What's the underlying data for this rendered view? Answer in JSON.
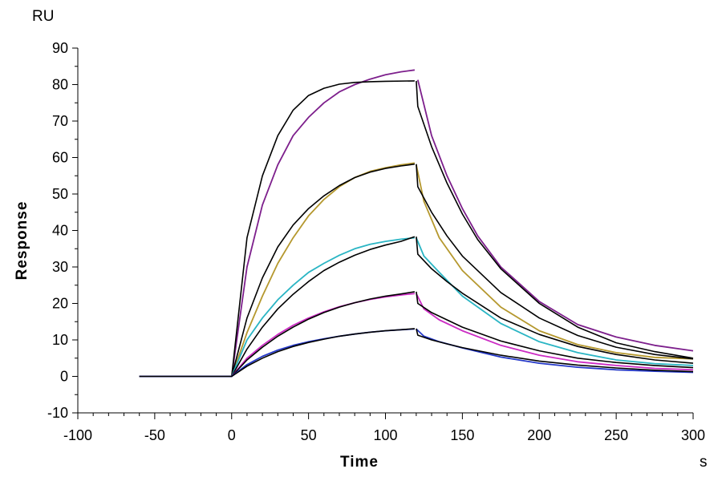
{
  "chart_data": {
    "type": "line",
    "title": "",
    "xlabel": "Time",
    "ylabel": "Response",
    "x_unit": "s",
    "y_unit": "RU",
    "xlim": [
      -100,
      300
    ],
    "ylim": [
      -10,
      90
    ],
    "x_ticks": [
      "-100",
      "-50",
      "0",
      "50",
      "100",
      "150",
      "200",
      "250",
      "300"
    ],
    "y_ticks": [
      "-10",
      "0",
      "10",
      "20",
      "30",
      "40",
      "50",
      "60",
      "70",
      "80",
      "90"
    ],
    "grid": false,
    "legend": "none",
    "series": [
      {
        "color": "#7d1f8c",
        "role": "data",
        "start": -60,
        "association_end": 120,
        "end": 300,
        "points": [
          [
            0,
            0
          ],
          [
            10,
            30
          ],
          [
            20,
            47
          ],
          [
            30,
            58
          ],
          [
            40,
            66
          ],
          [
            50,
            71
          ],
          [
            60,
            75
          ],
          [
            70,
            78
          ],
          [
            80,
            80
          ],
          [
            90,
            81.5
          ],
          [
            100,
            82.7
          ],
          [
            110,
            83.5
          ],
          [
            119,
            84
          ]
        ],
        "dissociation": [
          [
            121,
            81.3
          ],
          [
            130,
            66
          ],
          [
            140,
            55
          ],
          [
            150,
            46
          ],
          [
            160,
            38.5
          ],
          [
            175,
            30
          ],
          [
            200,
            20.5
          ],
          [
            225,
            14.2
          ],
          [
            250,
            10.8
          ],
          [
            275,
            8.5
          ],
          [
            300,
            7
          ]
        ]
      },
      {
        "color": "#000000",
        "role": "fit",
        "start": -60,
        "association_end": 120,
        "end": 300,
        "points": [
          [
            0,
            0
          ],
          [
            10,
            38
          ],
          [
            20,
            55
          ],
          [
            30,
            66
          ],
          [
            40,
            73
          ],
          [
            50,
            77
          ],
          [
            60,
            79
          ],
          [
            70,
            80.1
          ],
          [
            80,
            80.6
          ],
          [
            90,
            80.8
          ],
          [
            100,
            80.9
          ],
          [
            119,
            81
          ]
        ],
        "dissociation": [
          [
            120,
            81
          ],
          [
            121,
            74
          ],
          [
            130,
            63
          ],
          [
            140,
            53
          ],
          [
            150,
            44.5
          ],
          [
            160,
            37.5
          ],
          [
            175,
            29.5
          ],
          [
            200,
            20
          ],
          [
            225,
            13.5
          ],
          [
            250,
            9.2
          ],
          [
            275,
            6.8
          ],
          [
            300,
            5
          ]
        ]
      },
      {
        "color": "#b5982e",
        "role": "data",
        "start": -60,
        "association_end": 120,
        "end": 300,
        "points": [
          [
            0,
            0
          ],
          [
            10,
            12
          ],
          [
            20,
            22
          ],
          [
            30,
            31
          ],
          [
            40,
            38
          ],
          [
            50,
            44
          ],
          [
            60,
            48.5
          ],
          [
            70,
            52
          ],
          [
            80,
            54.5
          ],
          [
            90,
            56.2
          ],
          [
            100,
            57.2
          ],
          [
            110,
            58
          ],
          [
            119,
            58.5
          ]
        ],
        "dissociation": [
          [
            120,
            58
          ],
          [
            125,
            48
          ],
          [
            135,
            38
          ],
          [
            150,
            29
          ],
          [
            175,
            19
          ],
          [
            200,
            12.5
          ],
          [
            225,
            8.7
          ],
          [
            250,
            6.5
          ],
          [
            275,
            5.2
          ],
          [
            300,
            4.8
          ]
        ]
      },
      {
        "color": "#000000",
        "role": "fit",
        "start": -60,
        "association_end": 120,
        "end": 300,
        "points": [
          [
            0,
            0
          ],
          [
            10,
            16
          ],
          [
            20,
            27
          ],
          [
            30,
            35.5
          ],
          [
            40,
            41.5
          ],
          [
            50,
            46
          ],
          [
            60,
            49.5
          ],
          [
            70,
            52.3
          ],
          [
            80,
            54.5
          ],
          [
            90,
            56
          ],
          [
            100,
            57
          ],
          [
            110,
            57.7
          ],
          [
            119,
            58.2
          ]
        ],
        "dissociation": [
          [
            120,
            58.2
          ],
          [
            121,
            52
          ],
          [
            130,
            45
          ],
          [
            140,
            38.5
          ],
          [
            150,
            33
          ],
          [
            175,
            23
          ],
          [
            200,
            16
          ],
          [
            225,
            11.2
          ],
          [
            250,
            8
          ],
          [
            275,
            6
          ],
          [
            300,
            4.8
          ]
        ]
      },
      {
        "color": "#2ab5c4",
        "role": "data",
        "start": -60,
        "association_end": 120,
        "end": 300,
        "points": [
          [
            0,
            0
          ],
          [
            10,
            10
          ],
          [
            20,
            16
          ],
          [
            30,
            21
          ],
          [
            40,
            25
          ],
          [
            50,
            28.5
          ],
          [
            60,
            31
          ],
          [
            70,
            33.2
          ],
          [
            80,
            35
          ],
          [
            90,
            36.2
          ],
          [
            100,
            37
          ],
          [
            110,
            37.6
          ],
          [
            119,
            38
          ]
        ],
        "dissociation": [
          [
            120,
            38
          ],
          [
            125,
            33
          ],
          [
            135,
            28.5
          ],
          [
            150,
            22
          ],
          [
            175,
            14.5
          ],
          [
            200,
            9.5
          ],
          [
            225,
            6.5
          ],
          [
            250,
            4.5
          ],
          [
            275,
            3.5
          ],
          [
            300,
            3
          ]
        ]
      },
      {
        "color": "#000000",
        "role": "fit",
        "start": -60,
        "association_end": 120,
        "end": 300,
        "points": [
          [
            0,
            0
          ],
          [
            10,
            7.5
          ],
          [
            20,
            13.5
          ],
          [
            30,
            18.5
          ],
          [
            40,
            22.5
          ],
          [
            50,
            26
          ],
          [
            60,
            29
          ],
          [
            70,
            31.3
          ],
          [
            80,
            33.2
          ],
          [
            90,
            34.8
          ],
          [
            100,
            36
          ],
          [
            110,
            37
          ],
          [
            119,
            38.3
          ]
        ],
        "dissociation": [
          [
            120,
            38.3
          ],
          [
            121,
            33.5
          ],
          [
            130,
            29.5
          ],
          [
            140,
            26
          ],
          [
            150,
            22.8
          ],
          [
            175,
            16
          ],
          [
            200,
            11.5
          ],
          [
            225,
            8.2
          ],
          [
            250,
            6
          ],
          [
            275,
            4.5
          ],
          [
            300,
            3.6
          ]
        ]
      },
      {
        "color": "#cc2cc4",
        "role": "data",
        "start": -60,
        "association_end": 120,
        "end": 300,
        "points": [
          [
            0,
            0
          ],
          [
            10,
            5
          ],
          [
            20,
            8.5
          ],
          [
            30,
            11.5
          ],
          [
            40,
            14
          ],
          [
            50,
            16
          ],
          [
            60,
            17.7
          ],
          [
            70,
            19.1
          ],
          [
            80,
            20.2
          ],
          [
            90,
            21.1
          ],
          [
            100,
            21.8
          ],
          [
            110,
            22.3
          ],
          [
            119,
            22.7
          ]
        ],
        "dissociation": [
          [
            120,
            22.7
          ],
          [
            125,
            18.5
          ],
          [
            135,
            15.5
          ],
          [
            150,
            12.5
          ],
          [
            175,
            8.5
          ],
          [
            200,
            5.8
          ],
          [
            225,
            4
          ],
          [
            250,
            3
          ],
          [
            275,
            2.2
          ],
          [
            300,
            1.8
          ]
        ]
      },
      {
        "color": "#000000",
        "role": "fit",
        "start": -60,
        "association_end": 120,
        "end": 300,
        "points": [
          [
            0,
            0
          ],
          [
            10,
            4.5
          ],
          [
            20,
            8
          ],
          [
            30,
            11
          ],
          [
            40,
            13.5
          ],
          [
            50,
            15.7
          ],
          [
            60,
            17.5
          ],
          [
            70,
            19
          ],
          [
            80,
            20.2
          ],
          [
            90,
            21.2
          ],
          [
            100,
            22
          ],
          [
            110,
            22.6
          ],
          [
            119,
            23.2
          ]
        ],
        "dissociation": [
          [
            120,
            23.2
          ],
          [
            121,
            20
          ],
          [
            130,
            17.5
          ],
          [
            140,
            15.5
          ],
          [
            150,
            13.5
          ],
          [
            175,
            9.7
          ],
          [
            200,
            7
          ],
          [
            225,
            5
          ],
          [
            250,
            3.8
          ],
          [
            275,
            3
          ],
          [
            300,
            2.4
          ]
        ]
      },
      {
        "color": "#2438c8",
        "role": "data",
        "start": -60,
        "association_end": 120,
        "end": 300,
        "points": [
          [
            0,
            0
          ],
          [
            10,
            3.2
          ],
          [
            20,
            5.5
          ],
          [
            30,
            7.2
          ],
          [
            40,
            8.5
          ],
          [
            50,
            9.5
          ],
          [
            60,
            10.3
          ],
          [
            70,
            11
          ],
          [
            80,
            11.6
          ],
          [
            90,
            12.1
          ],
          [
            100,
            12.5
          ],
          [
            110,
            12.8
          ],
          [
            119,
            13
          ]
        ],
        "dissociation": [
          [
            120,
            13
          ],
          [
            125,
            11
          ],
          [
            135,
            9.5
          ],
          [
            150,
            7.8
          ],
          [
            175,
            5.3
          ],
          [
            200,
            3.6
          ],
          [
            225,
            2.5
          ],
          [
            250,
            1.8
          ],
          [
            275,
            1.4
          ],
          [
            300,
            1.1
          ]
        ]
      },
      {
        "color": "#000000",
        "role": "fit",
        "start": -60,
        "association_end": 120,
        "end": 300,
        "points": [
          [
            0,
            0
          ],
          [
            10,
            2.8
          ],
          [
            20,
            5
          ],
          [
            30,
            6.8
          ],
          [
            40,
            8.2
          ],
          [
            50,
            9.3
          ],
          [
            60,
            10.2
          ],
          [
            70,
            11
          ],
          [
            80,
            11.6
          ],
          [
            90,
            12.1
          ],
          [
            100,
            12.5
          ],
          [
            110,
            12.8
          ],
          [
            119,
            13.1
          ]
        ],
        "dissociation": [
          [
            120,
            13.1
          ],
          [
            121,
            11.3
          ],
          [
            130,
            10
          ],
          [
            140,
            8.9
          ],
          [
            150,
            7.9
          ],
          [
            175,
            5.8
          ],
          [
            200,
            4.2
          ],
          [
            225,
            3.1
          ],
          [
            250,
            2.3
          ],
          [
            275,
            1.7
          ],
          [
            300,
            1.3
          ]
        ]
      }
    ]
  }
}
